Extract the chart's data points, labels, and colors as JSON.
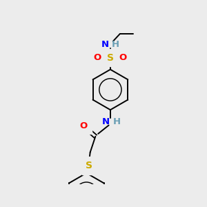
{
  "background_color": "#ececec",
  "colors": {
    "C": "#000000",
    "H": "#6a9fb5",
    "N": "#0000ff",
    "O": "#ff0000",
    "S": "#ccaa00",
    "bond": "#000000"
  },
  "figsize": [
    3.0,
    3.0
  ],
  "dpi": 100
}
